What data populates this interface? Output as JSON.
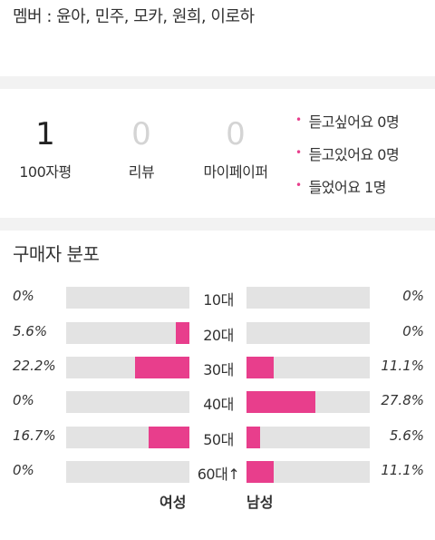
{
  "members_line": "멤버 : 윤아, 민주, 모카, 원희, 이로하",
  "stats": [
    {
      "value": "1",
      "label": "100자평"
    },
    {
      "value": "0",
      "label": "리뷰"
    },
    {
      "value": "0",
      "label": "마이페이퍼"
    }
  ],
  "wishlist": [
    "듣고싶어요 0명",
    "듣고있어요 0명",
    "들었어요 1명"
  ],
  "distribution": {
    "title": "구매자 분포",
    "female_label": "여성",
    "male_label": "남성",
    "accent_color": "#e83e8c",
    "track_color": "#e3e3e3",
    "max_scale_percent": 50,
    "rows": [
      {
        "age": "10대",
        "female": "0%",
        "female_value": 0,
        "male": "0%",
        "male_value": 0
      },
      {
        "age": "20대",
        "female": "5.6%",
        "female_value": 5.6,
        "male": "0%",
        "male_value": 0
      },
      {
        "age": "30대",
        "female": "22.2%",
        "female_value": 22.2,
        "male": "11.1%",
        "male_value": 11.1
      },
      {
        "age": "40대",
        "female": "0%",
        "female_value": 0,
        "male": "27.8%",
        "male_value": 27.8
      },
      {
        "age": "50대",
        "female": "16.7%",
        "female_value": 16.7,
        "male": "5.6%",
        "male_value": 5.6
      },
      {
        "age": "60대↑",
        "female": "0%",
        "female_value": 0,
        "male": "11.1%",
        "male_value": 11.1
      }
    ]
  }
}
